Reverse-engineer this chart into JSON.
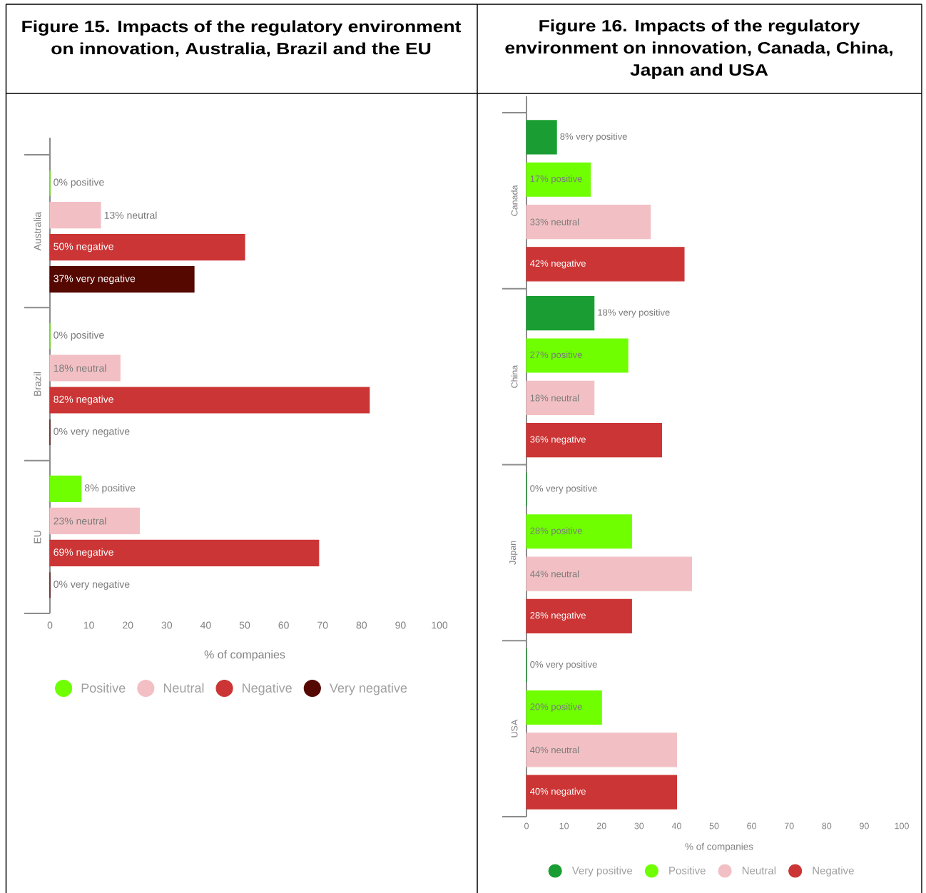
{
  "chart_data": [
    {
      "type": "bar",
      "orientation": "horizontal",
      "title": "Figure 15. Impacts of the regulatory environment on innovation, Australia, Brazil and the EU",
      "xlabel": "% of companies",
      "categories": [
        "Australia",
        "Brazil",
        "EU"
      ],
      "series": [
        {
          "name": "Positive",
          "color": "#6fff00",
          "values": [
            0,
            0,
            8
          ],
          "value_labels": [
            "0% positive",
            "0% positive",
            "8% positive"
          ]
        },
        {
          "name": "Neutral",
          "color": "#f2c0c4",
          "values": [
            13,
            18,
            23
          ],
          "value_labels": [
            "13% neutral",
            "18% neutral",
            "23% neutral"
          ]
        },
        {
          "name": "Negative",
          "color": "#cc3535",
          "values": [
            50,
            82,
            69
          ],
          "value_labels": [
            "50% negative",
            "82% negative",
            "69% negative"
          ]
        },
        {
          "name": "Very negative",
          "color": "#550800",
          "values": [
            37,
            0,
            0
          ],
          "value_labels": [
            "37% very negative",
            "0% very negative",
            "0% very negative"
          ]
        }
      ],
      "xlim": [
        0,
        100
      ],
      "xticks": [
        0,
        10,
        20,
        30,
        40,
        50,
        60,
        70,
        80,
        90,
        100
      ],
      "legend": "bottom"
    },
    {
      "type": "bar",
      "orientation": "horizontal",
      "title": "Figure 16. Impacts of the regulatory environment on innovation, Canada, China, Japan and USA",
      "xlabel": "% of companies",
      "categories": [
        "Canada",
        "China",
        "Japan",
        "USA"
      ],
      "series": [
        {
          "name": "Very positive",
          "color": "#1a9e33",
          "values": [
            8,
            18,
            0,
            0
          ],
          "value_labels": [
            "8% very positive",
            "18% very positive",
            "0% very positive",
            "0% very positive"
          ]
        },
        {
          "name": "Positive",
          "color": "#6fff00",
          "values": [
            17,
            27,
            28,
            20
          ],
          "value_labels": [
            "17% positive",
            "27% positive",
            "28% positive",
            "20% positive"
          ]
        },
        {
          "name": "Neutral",
          "color": "#f2c0c4",
          "values": [
            33,
            18,
            44,
            40
          ],
          "value_labels": [
            "33% neutral",
            "18% neutral",
            "44% neutral",
            "40% neutral"
          ]
        },
        {
          "name": "Negative",
          "color": "#cc3535",
          "values": [
            42,
            36,
            28,
            40
          ],
          "value_labels": [
            "42% negative",
            "36% negative",
            "28% negative",
            "40% negative"
          ]
        }
      ],
      "xlim": [
        0,
        100
      ],
      "xticks": [
        0,
        10,
        20,
        30,
        40,
        50,
        60,
        70,
        80,
        90,
        100
      ],
      "legend": "bottom"
    }
  ]
}
